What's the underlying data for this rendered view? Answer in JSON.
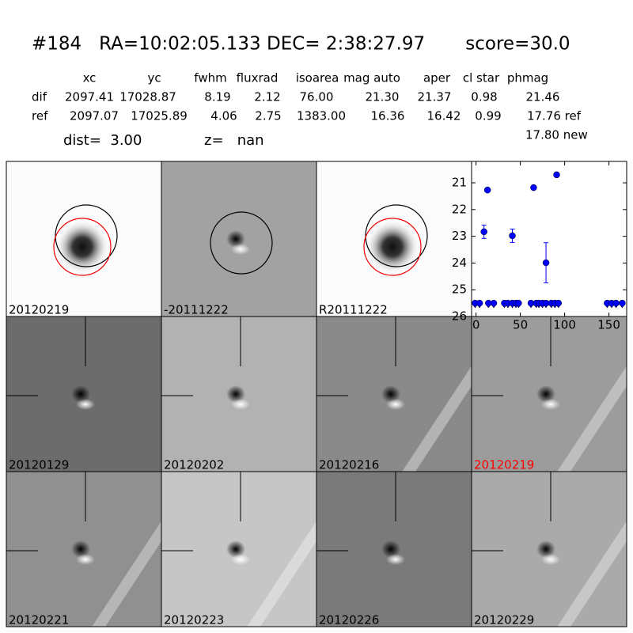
{
  "header": {
    "title": "#184   RA=10:02:05.133 DEC= 2:38:27.97       score=30.0",
    "dist": "dist=  3.00",
    "z": "z=   nan"
  },
  "table": {
    "columns": [
      "xc",
      "yc",
      "fwhm",
      "fluxrad",
      "isoarea",
      "mag auto",
      "aper",
      "cl star",
      "phmag"
    ],
    "rows": [
      [
        "dif",
        "2097.41",
        "17028.87",
        "8.19",
        "2.12",
        "76.00",
        "21.30",
        "21.37",
        "0.98",
        "21.46"
      ],
      [
        "ref",
        "2097.07",
        "17025.89",
        "4.06",
        "2.75",
        "1383.00",
        "16.36",
        "16.42",
        "0.99",
        "17.76 ref"
      ]
    ],
    "note": "17.80 new"
  },
  "stamps": [
    {
      "label": "20120219"
    },
    {
      "label": "-20111222"
    },
    {
      "label": "R20111222"
    },
    {
      "label": "20120129"
    },
    {
      "label": "20120202"
    },
    {
      "label": "20120216"
    },
    {
      "label": "20120219",
      "label_color": "#ff0000"
    },
    {
      "label": "20120221"
    },
    {
      "label": "20120223"
    },
    {
      "label": "20120226"
    },
    {
      "label": "20120229"
    }
  ],
  "chart_data": {
    "type": "scatter",
    "xlim": [
      -5,
      170
    ],
    "ylim": [
      26,
      20.2
    ],
    "xticks": [
      0,
      50,
      100,
      150
    ],
    "yticks": [
      21,
      22,
      23,
      24,
      25,
      26
    ],
    "series": [
      {
        "color": "#0000ff",
        "x": [
          9,
          13,
          41,
          65,
          79,
          91
        ],
        "values": [
          22.83,
          21.27,
          22.98,
          21.18,
          23.99,
          20.7
        ],
        "errors": [
          0.25,
          0.05,
          0.25,
          0.05,
          0.75,
          0.05
        ]
      },
      {
        "color": "#0000ff",
        "x": [
          -1,
          4,
          14,
          20,
          32,
          36,
          41,
          45,
          48,
          62,
          68,
          71,
          75,
          79,
          85,
          89,
          93,
          148,
          153,
          158,
          165
        ],
        "values": [
          25.5,
          25.5,
          25.5,
          25.5,
          25.5,
          25.5,
          25.5,
          25.5,
          25.5,
          25.5,
          25.5,
          25.5,
          25.5,
          25.5,
          25.5,
          25.5,
          25.5,
          25.5,
          25.5,
          25.5,
          25.5
        ]
      }
    ]
  }
}
